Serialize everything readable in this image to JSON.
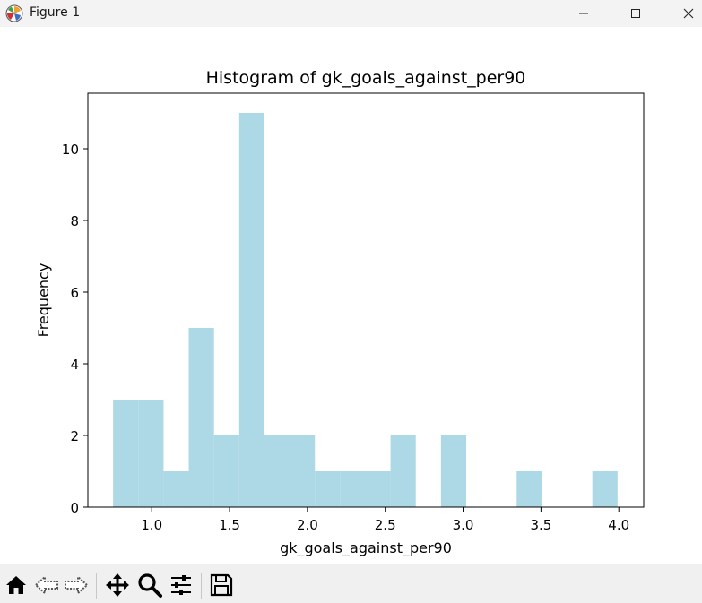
{
  "window": {
    "title": "Figure 1",
    "icons": {
      "app": "matplotlib-icon",
      "minimize": "minimize-icon",
      "maximize": "maximize-icon",
      "close": "close-icon"
    }
  },
  "toolbar": {
    "buttons": [
      "home-icon",
      "back-icon",
      "forward-icon",
      "pan-icon",
      "zoom-icon",
      "configure-subplots-icon",
      "save-icon"
    ]
  },
  "chart_data": {
    "type": "histogram",
    "title": "Histogram of gk_goals_against_per90",
    "xlabel": "gk_goals_against_per90",
    "ylabel": "Frequency",
    "bar_color": "#add8e6",
    "xlim": [
      0.59,
      4.16
    ],
    "ylim": [
      0,
      11.55
    ],
    "xticks": [
      1.0,
      1.5,
      2.0,
      2.5,
      3.0,
      3.5,
      4.0
    ],
    "xtick_labels": [
      "1.0",
      "1.5",
      "2.0",
      "2.5",
      "3.0",
      "3.5",
      "4.0"
    ],
    "yticks": [
      0,
      2,
      4,
      6,
      8,
      10
    ],
    "ytick_labels": [
      "0",
      "2",
      "4",
      "6",
      "8",
      "10"
    ],
    "bin_edges": [
      0.752,
      0.914,
      1.076,
      1.238,
      1.4,
      1.562,
      1.724,
      1.886,
      2.048,
      2.21,
      2.372,
      2.534,
      2.696,
      2.858,
      3.02,
      3.182,
      3.344,
      3.506,
      3.668,
      3.83,
      3.992
    ],
    "counts": [
      3,
      3,
      1,
      5,
      2,
      11,
      2,
      2,
      1,
      1,
      1,
      2,
      0,
      2,
      0,
      0,
      1,
      0,
      0,
      1
    ],
    "grid": false,
    "legend": "none"
  }
}
